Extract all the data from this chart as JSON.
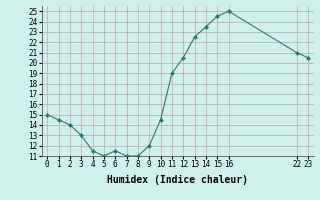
{
  "x_values": [
    0,
    1,
    2,
    3,
    4,
    5,
    6,
    7,
    8,
    9,
    10,
    11,
    12,
    13,
    14,
    15,
    16,
    22,
    23
  ],
  "y_values": [
    15,
    14.5,
    14,
    13,
    11.5,
    11,
    11.5,
    11,
    11,
    12,
    14.5,
    19,
    20.5,
    22.5,
    23.5,
    24.5,
    25,
    21,
    20.5
  ],
  "line_color": "#2e7b6e",
  "marker_color": "#2e7b6e",
  "bg_color": "#d0f0ec",
  "grid_color": "#c0a8a8",
  "xlabel": "Humidex (Indice chaleur)",
  "ylim": [
    11,
    25.5
  ],
  "yticks": [
    11,
    12,
    13,
    14,
    15,
    16,
    17,
    18,
    19,
    20,
    21,
    22,
    23,
    24,
    25
  ],
  "xticks": [
    0,
    1,
    2,
    3,
    4,
    5,
    6,
    7,
    8,
    9,
    10,
    11,
    12,
    13,
    14,
    15,
    16,
    22,
    23
  ],
  "xtick_labels": [
    "0",
    "1",
    "2",
    "3",
    "4",
    "5",
    "6",
    "7",
    "8",
    "9",
    "10",
    "11",
    "12",
    "13",
    "14",
    "15",
    "16",
    "22",
    "23"
  ],
  "tick_fontsize": 5.5,
  "xlabel_fontsize": 7,
  "xlim": [
    -0.5,
    23.5
  ]
}
